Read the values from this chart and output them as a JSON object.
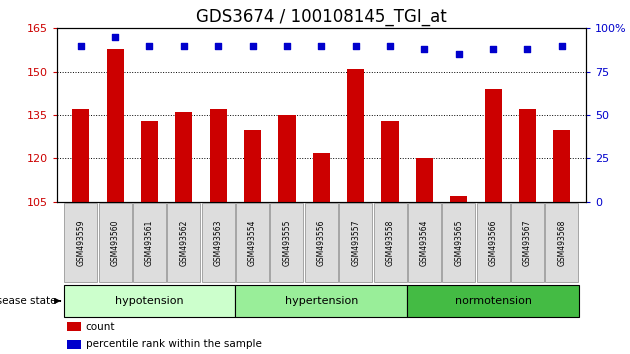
{
  "title": "GDS3674 / 100108145_TGI_at",
  "categories": [
    "GSM493559",
    "GSM493560",
    "GSM493561",
    "GSM493562",
    "GSM493563",
    "GSM493554",
    "GSM493555",
    "GSM493556",
    "GSM493557",
    "GSM493558",
    "GSM493564",
    "GSM493565",
    "GSM493566",
    "GSM493567",
    "GSM493568"
  ],
  "bar_values": [
    137,
    158,
    133,
    136,
    137,
    130,
    135,
    122,
    151,
    133,
    120,
    107,
    144,
    137,
    130
  ],
  "percentile_pct": [
    90,
    95,
    90,
    90,
    90,
    90,
    90,
    90,
    90,
    90,
    88,
    85,
    88,
    88,
    90
  ],
  "bar_color": "#cc0000",
  "percentile_color": "#0000cc",
  "ylim_left": [
    105,
    165
  ],
  "ylim_right": [
    0,
    100
  ],
  "yticks_left": [
    105,
    120,
    135,
    150,
    165
  ],
  "yticks_right": [
    0,
    25,
    50,
    75,
    100
  ],
  "ytick_labels_right": [
    "0",
    "25",
    "50",
    "75",
    "100%"
  ],
  "group_colors": [
    "#ccffcc",
    "#99ee99",
    "#44bb44"
  ],
  "groups": [
    {
      "label": "hypotension",
      "start": 0,
      "end": 5
    },
    {
      "label": "hypertension",
      "start": 5,
      "end": 10
    },
    {
      "label": "normotension",
      "start": 10,
      "end": 15
    }
  ],
  "disease_state_label": "disease state",
  "legend_items": [
    {
      "label": "count",
      "color": "#cc0000"
    },
    {
      "label": "percentile rank within the sample",
      "color": "#0000cc"
    }
  ],
  "bar_width": 0.5,
  "tick_color_left": "#cc0000",
  "tick_color_right": "#0000cc",
  "title_fontsize": 12,
  "label_box_color": "#dddddd",
  "label_box_edge": "#888888"
}
